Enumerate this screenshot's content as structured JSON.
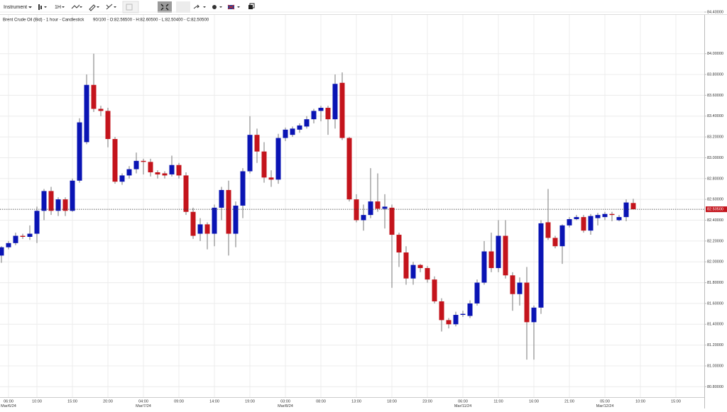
{
  "toolbar": {
    "instrument": "Instrument",
    "interval": "1H"
  },
  "chart_data": {
    "type": "candlestick",
    "title": "Brent Crude Oil (Bid) - 1 hour - Candlestick",
    "subtitle": "90/100 - O:82.56500 - H:82.60500 - L:82.50400 - C:82.50500",
    "up_color": "#0a14b4",
    "down_color": "#c4141c",
    "grid": true,
    "ylim": [
      80.7,
      84.4
    ],
    "yticks": [
      {
        "value": 80.8,
        "label": "80.80000"
      },
      {
        "value": 81,
        "label": "81.00000"
      },
      {
        "value": 81.2,
        "label": "81.20000"
      },
      {
        "value": 81.4,
        "label": "81.40000"
      },
      {
        "value": 81.6,
        "label": "81.60000"
      },
      {
        "value": 81.8,
        "label": "81.80000"
      },
      {
        "value": 82,
        "label": "82.00000"
      },
      {
        "value": 82.2,
        "label": "82.20000"
      },
      {
        "value": 82.4,
        "label": "82.40000"
      },
      {
        "value": 82.6,
        "label": "82.60000"
      },
      {
        "value": 82.8,
        "label": "82.80000"
      },
      {
        "value": 83,
        "label": "83.00000"
      },
      {
        "value": 83.2,
        "label": "83.20000"
      },
      {
        "value": 83.4,
        "label": "83.40000"
      },
      {
        "value": 83.6,
        "label": "83.60000"
      },
      {
        "value": 83.8,
        "label": "83.80000"
      },
      {
        "value": 84,
        "label": "84.00000"
      },
      {
        "value": 84.4,
        "label": "84.40000"
      }
    ],
    "last_label": "82.50500",
    "categories": [
      null,
      "06:00",
      null,
      null,
      null,
      "10:00",
      null,
      null,
      null,
      null,
      "15:00",
      null,
      null,
      null,
      null,
      "20:00",
      null,
      null,
      null,
      null,
      "04:00",
      null,
      null,
      null,
      null,
      "09:00",
      null,
      null,
      null,
      null,
      "14:00",
      null,
      null,
      null,
      null,
      "19:00",
      null,
      null,
      null,
      null,
      "03:00",
      null,
      null,
      null,
      null,
      "08:00",
      null,
      null,
      null,
      null,
      "13:00",
      null,
      null,
      null,
      null,
      "18:00",
      null,
      null,
      null,
      null,
      "23:00",
      null,
      null,
      null,
      null,
      "06:00",
      null,
      null,
      null,
      null,
      "11:00",
      null,
      null,
      null,
      null,
      "16:00",
      null,
      null,
      null,
      null,
      "21:00",
      null,
      null,
      null,
      null,
      "05:00",
      null,
      null,
      null,
      null,
      "10:00",
      null,
      null,
      null,
      null,
      "15:00",
      null,
      null,
      null
    ],
    "dates": [
      null,
      "Mar/6/24",
      null,
      null,
      null,
      null,
      null,
      null,
      null,
      null,
      null,
      null,
      null,
      null,
      null,
      null,
      null,
      null,
      null,
      null,
      "Mar/7/24",
      null,
      null,
      null,
      null,
      null,
      null,
      null,
      null,
      null,
      null,
      null,
      null,
      null,
      null,
      null,
      null,
      null,
      null,
      null,
      "Mar/8/24",
      null,
      null,
      null,
      null,
      null,
      null,
      null,
      null,
      null,
      null,
      null,
      null,
      null,
      null,
      null,
      null,
      null,
      null,
      null,
      null,
      null,
      null,
      null,
      null,
      "Mar/11/24",
      null,
      null,
      null,
      null,
      null,
      null,
      null,
      null,
      null,
      null,
      null,
      null,
      null,
      null,
      null,
      null,
      null,
      null,
      null,
      "Mar/12/24",
      null,
      null,
      null,
      null,
      null,
      null,
      null,
      null,
      null,
      null,
      null,
      null,
      null
    ],
    "open": [
      82.06,
      82.14,
      82.18,
      82.25,
      82.24,
      82.27,
      82.49,
      82.68,
      82.49,
      82.6,
      82.49,
      82.78,
      83.15,
      83.7,
      83.47,
      83.45,
      83.18,
      82.77,
      82.83,
      82.89,
      82.97,
      82.96,
      82.86,
      82.85,
      82.84,
      82.93,
      82.83,
      82.48,
      82.27,
      82.36,
      82.27,
      82.52,
      82.69,
      82.27,
      82.54,
      82.87,
      83.22,
      83.06,
      82.81,
      82.79,
      83.19,
      83.22,
      83.27,
      83.3,
      83.37,
      83.45,
      83.48,
      83.37,
      83.72,
      83.19,
      82.6,
      82.4,
      82.45,
      82.58,
      82.51,
      82.52,
      82.26,
      82.09,
      81.84,
      81.97,
      81.94,
      81.83,
      81.62,
      81.44,
      81.4,
      81.49,
      81.48,
      81.6,
      81.8,
      82.1,
      81.94,
      82.25,
      81.87,
      81.69,
      81.8,
      81.42,
      81.56,
      82.38,
      82.23,
      82.15,
      82.35,
      82.41,
      82.43,
      82.3,
      82.42,
      82.43,
      82.46,
      82.4,
      82.43,
      82.565,
      null,
      null,
      null,
      null,
      null,
      null,
      null,
      null,
      null
    ],
    "high": [
      82.15,
      82.2,
      82.28,
      82.27,
      82.35,
      82.53,
      82.7,
      82.72,
      82.62,
      82.62,
      82.8,
      83.38,
      83.8,
      84.0,
      83.5,
      83.48,
      83.2,
      82.85,
      82.92,
      83.05,
      82.99,
      82.99,
      82.88,
      82.87,
      83.02,
      82.95,
      82.86,
      82.52,
      82.42,
      82.38,
      82.55,
      82.72,
      82.78,
      82.58,
      82.9,
      83.4,
      83.28,
      83.15,
      82.88,
      83.23,
      83.29,
      83.3,
      83.33,
      83.4,
      83.47,
      83.5,
      83.5,
      83.8,
      83.82,
      83.2,
      82.65,
      82.55,
      82.9,
      82.85,
      82.65,
      82.55,
      82.28,
      82.15,
      82.0,
      81.98,
      81.96,
      81.86,
      81.65,
      81.46,
      81.52,
      81.53,
      81.63,
      81.83,
      82.2,
      82.28,
      82.4,
      82.4,
      81.9,
      81.85,
      81.95,
      81.58,
      82.4,
      82.7,
      82.25,
      82.36,
      82.43,
      82.45,
      82.45,
      82.46,
      82.47,
      82.48,
      82.48,
      82.45,
      82.6,
      82.605,
      null,
      null,
      null,
      null,
      null,
      null,
      null,
      null,
      null
    ],
    "low": [
      81.99,
      82.12,
      82.16,
      82.22,
      82.21,
      82.18,
      82.4,
      82.45,
      82.44,
      82.44,
      82.48,
      82.76,
      83.13,
      83.44,
      83.4,
      83.1,
      82.75,
      82.74,
      82.8,
      82.85,
      82.84,
      82.82,
      82.8,
      82.8,
      82.82,
      82.8,
      82.45,
      82.22,
      82.2,
      82.12,
      82.15,
      82.4,
      82.06,
      82.14,
      82.42,
      82.85,
      82.95,
      82.76,
      82.72,
      82.75,
      83.16,
      83.2,
      83.24,
      83.28,
      83.33,
      83.35,
      83.22,
      83.28,
      83.17,
      82.58,
      82.38,
      82.3,
      82.42,
      82.48,
      82.32,
      81.75,
      81.95,
      81.78,
      81.78,
      81.9,
      81.8,
      81.6,
      81.33,
      81.36,
      81.38,
      81.47,
      81.46,
      81.58,
      81.78,
      81.9,
      81.9,
      81.84,
      81.53,
      81.58,
      81.06,
      81.06,
      81.5,
      82.21,
      82.13,
      81.98,
      82.33,
      82.4,
      82.28,
      82.26,
      82.35,
      82.4,
      82.39,
      82.39,
      82.39,
      82.504,
      null,
      null,
      null,
      null,
      null,
      null,
      null,
      null,
      null
    ],
    "close": [
      82.14,
      82.18,
      82.25,
      82.24,
      82.27,
      82.49,
      82.68,
      82.49,
      82.6,
      82.49,
      82.78,
      83.34,
      83.7,
      83.47,
      83.45,
      83.18,
      82.77,
      82.83,
      82.89,
      82.97,
      82.96,
      82.86,
      82.84,
      82.83,
      82.93,
      82.83,
      82.48,
      82.25,
      82.36,
      82.27,
      82.52,
      82.69,
      82.27,
      82.54,
      82.87,
      83.22,
      83.06,
      82.81,
      82.79,
      83.19,
      83.27,
      83.28,
      83.31,
      83.37,
      83.45,
      83.48,
      83.37,
      83.71,
      83.19,
      82.6,
      82.4,
      82.45,
      82.58,
      82.51,
      82.53,
      82.26,
      82.09,
      81.84,
      81.97,
      81.94,
      81.83,
      81.62,
      81.44,
      81.4,
      81.49,
      81.5,
      81.6,
      81.8,
      82.1,
      81.94,
      82.25,
      81.87,
      81.69,
      81.8,
      81.42,
      81.56,
      82.37,
      82.23,
      82.15,
      82.35,
      82.41,
      82.43,
      82.3,
      82.44,
      82.45,
      82.46,
      82.45,
      82.43,
      82.57,
      82.505,
      null,
      null,
      null,
      null,
      null,
      null,
      null,
      null,
      null
    ]
  }
}
